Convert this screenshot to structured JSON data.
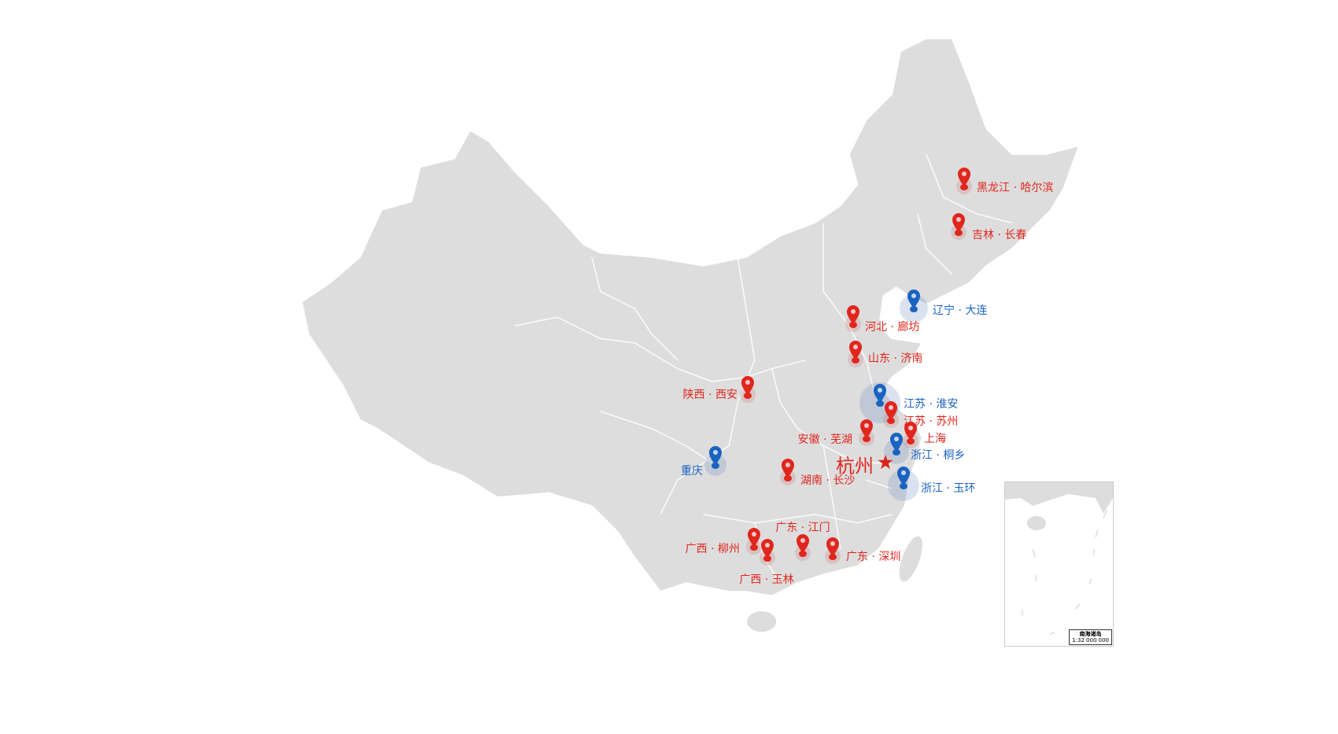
{
  "map": {
    "land_color": "#dddddd",
    "border_color": "#ffffff",
    "red": "#e0261d",
    "blue": "#1a63c1"
  },
  "hq": {
    "label": "杭州",
    "icon": "star-icon"
  },
  "markers": [
    {
      "label": "黑龙江 · 哈尔滨",
      "color": "red"
    },
    {
      "label": "吉林 · 长春",
      "color": "red"
    },
    {
      "label": "辽宁 · 大连",
      "color": "blue"
    },
    {
      "label": "河北 · 廊坊",
      "color": "red"
    },
    {
      "label": "山东 · 济南",
      "color": "red"
    },
    {
      "label": "陕西 · 西安",
      "color": "red"
    },
    {
      "label": "江苏 · 淮安",
      "color": "blue"
    },
    {
      "label": "江苏 · 苏州",
      "color": "red"
    },
    {
      "label": "安徽 · 芜湖",
      "color": "red"
    },
    {
      "label": "上海",
      "color": "red"
    },
    {
      "label": "浙江 · 桐乡",
      "color": "blue"
    },
    {
      "label": "重庆",
      "color": "blue"
    },
    {
      "label": "湖南 · 长沙",
      "color": "red"
    },
    {
      "label": "浙江 · 玉环",
      "color": "blue"
    },
    {
      "label": "广西 · 柳州",
      "color": "red"
    },
    {
      "label": "广西 · 玉林",
      "color": "red"
    },
    {
      "label": "广东 · 江门",
      "color": "red"
    },
    {
      "label": "广东 · 深圳",
      "color": "red"
    }
  ],
  "inset": {
    "title": "南海诸岛",
    "scale": "1:32 000 000"
  }
}
